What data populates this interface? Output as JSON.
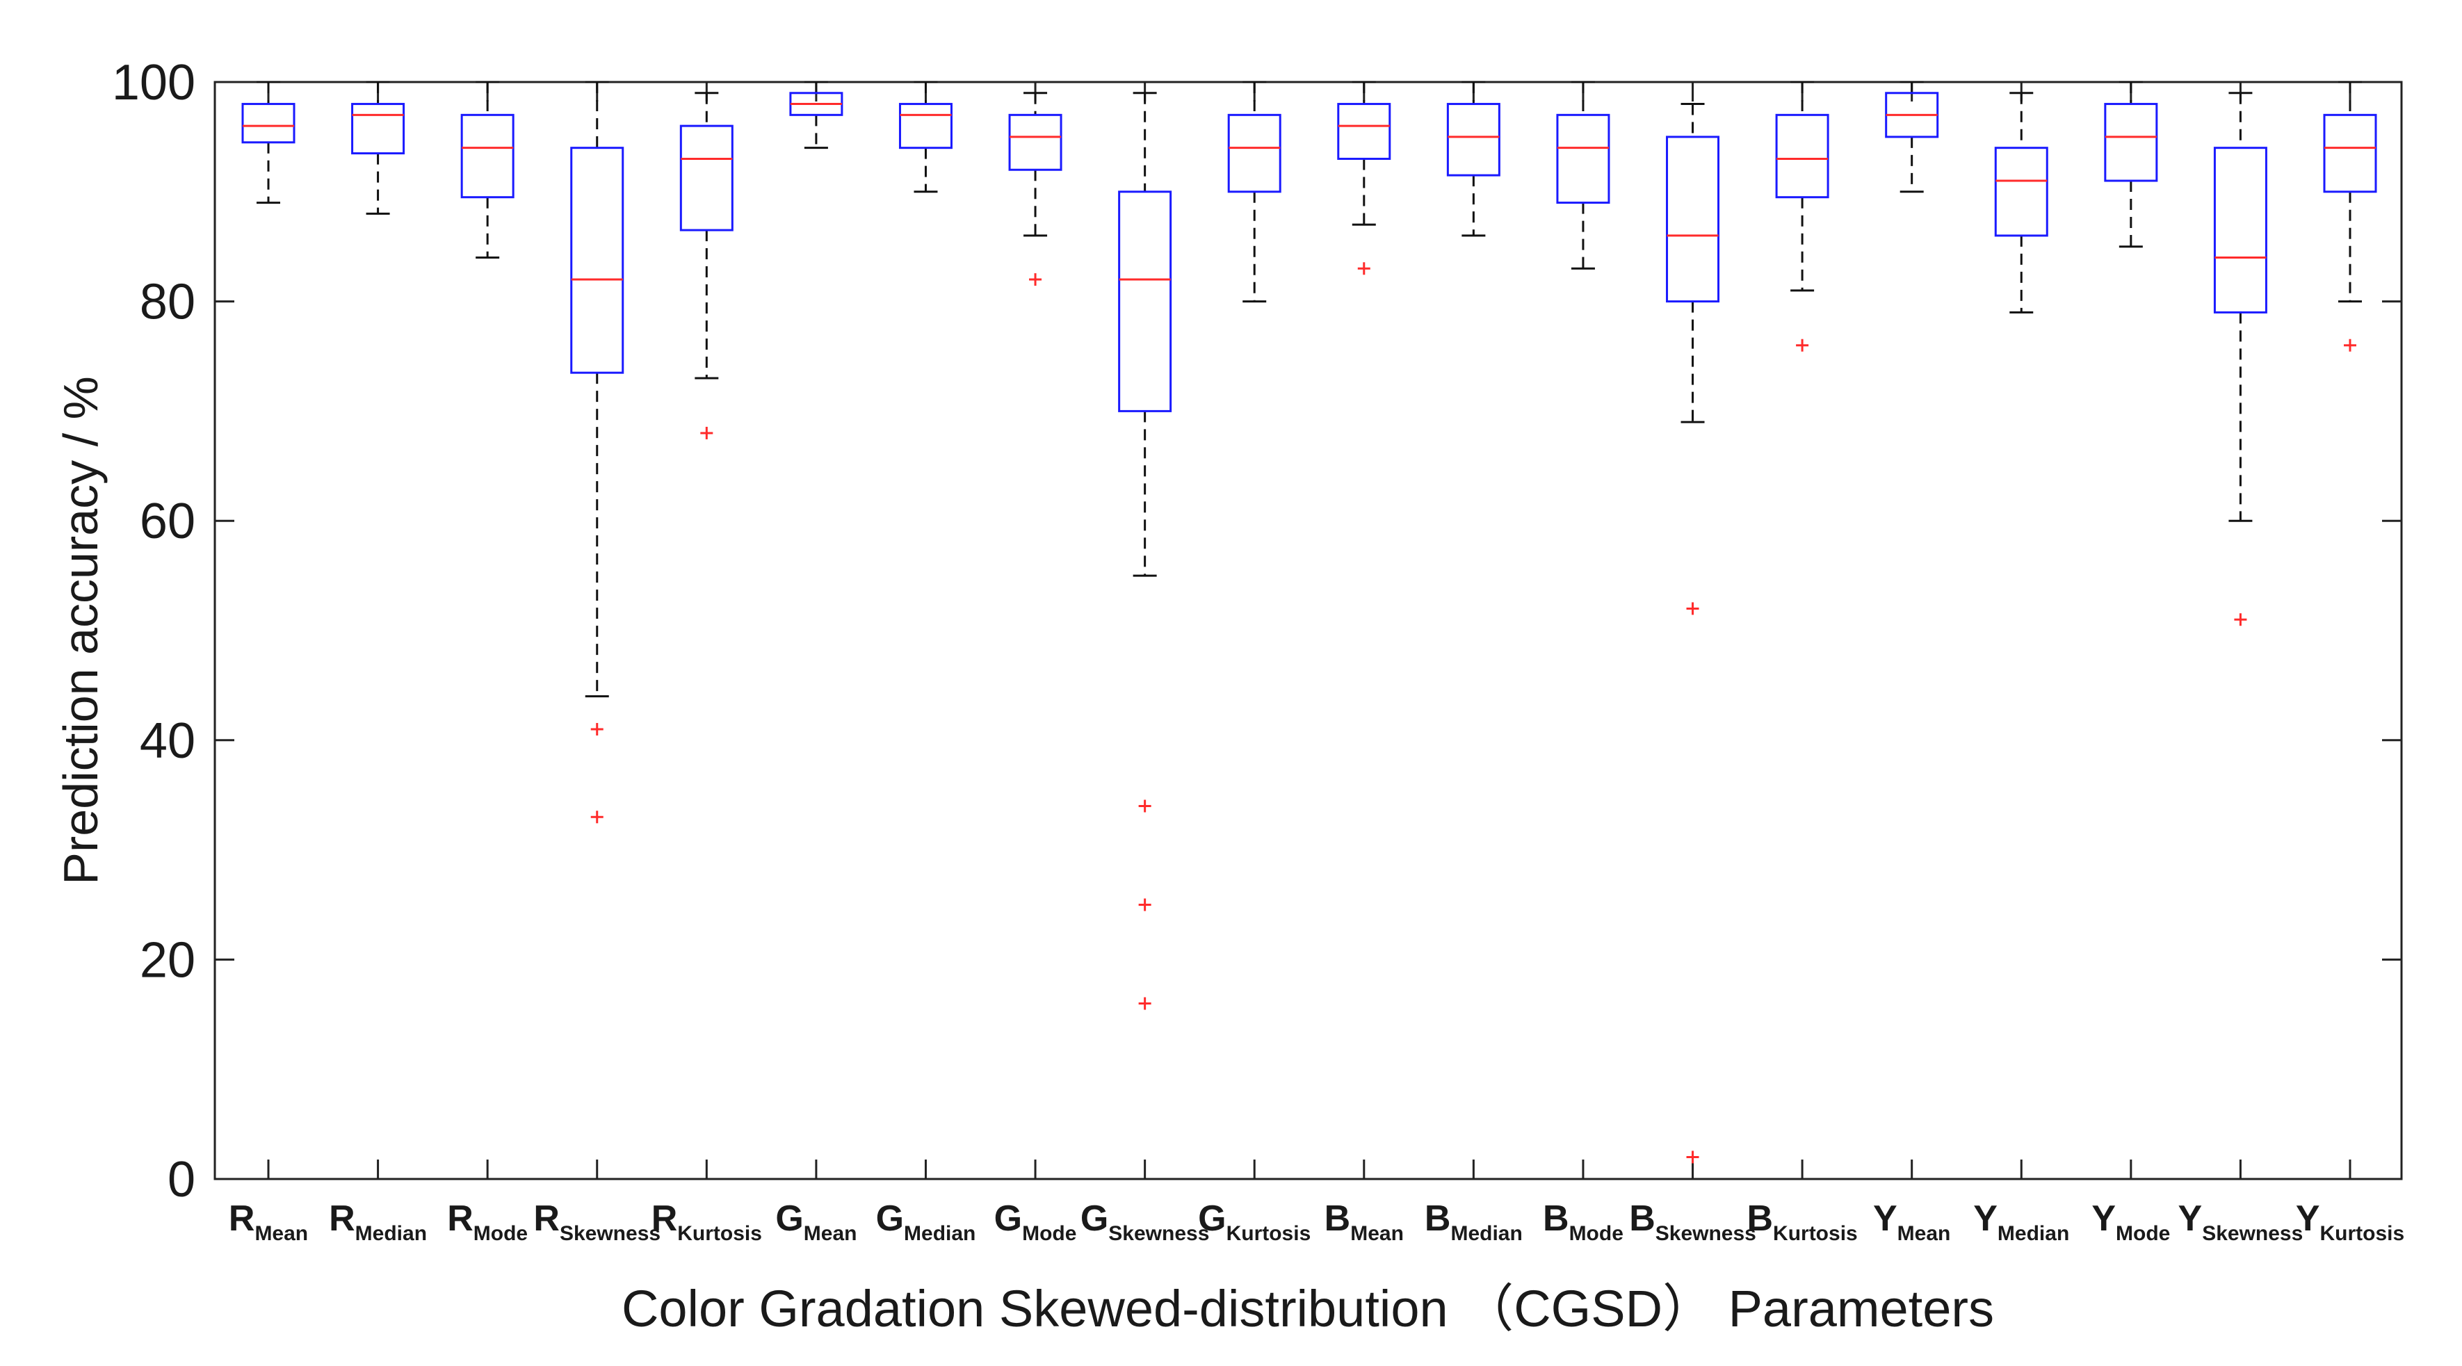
{
  "chart_data": {
    "type": "box",
    "title": "",
    "xlabel": "Color Gradation Skewed-distribution （CGSD） Parameters",
    "ylabel": "Prediction accuracy / %",
    "ylim": [
      0,
      100
    ],
    "yticks": [
      0,
      20,
      40,
      60,
      80,
      100
    ],
    "grid": false,
    "legend": "none",
    "colors": {
      "box": "#1a1aff",
      "median": "#ff2b2b",
      "whisker": "#111111",
      "outlier": "#ff2b2b",
      "axis": "#222222"
    },
    "categories": [
      {
        "base": "R",
        "sub": "Mean"
      },
      {
        "base": "R",
        "sub": "Median"
      },
      {
        "base": "R",
        "sub": "Mode"
      },
      {
        "base": "R",
        "sub": "Skewness"
      },
      {
        "base": "R",
        "sub": "Kurtosis"
      },
      {
        "base": "G",
        "sub": "Mean"
      },
      {
        "base": "G",
        "sub": "Median"
      },
      {
        "base": "G",
        "sub": "Mode"
      },
      {
        "base": "G",
        "sub": "Skewness"
      },
      {
        "base": "G",
        "sub": "Kurtosis"
      },
      {
        "base": "B",
        "sub": "Mean"
      },
      {
        "base": "B",
        "sub": "Median"
      },
      {
        "base": "B",
        "sub": "Mode"
      },
      {
        "base": "B",
        "sub": "Skewness"
      },
      {
        "base": "B",
        "sub": "Kurtosis"
      },
      {
        "base": "Y",
        "sub": "Mean"
      },
      {
        "base": "Y",
        "sub": "Median"
      },
      {
        "base": "Y",
        "sub": "Mode"
      },
      {
        "base": "Y",
        "sub": "Skewness"
      },
      {
        "base": "Y",
        "sub": "Kurtosis"
      }
    ],
    "boxes": [
      {
        "whisker_low": 89,
        "q1": 94.5,
        "median": 96,
        "q3": 98,
        "whisker_high": 100,
        "outliers": []
      },
      {
        "whisker_low": 88,
        "q1": 93.5,
        "median": 97,
        "q3": 98,
        "whisker_high": 100,
        "outliers": []
      },
      {
        "whisker_low": 84,
        "q1": 89.5,
        "median": 94,
        "q3": 97,
        "whisker_high": 100,
        "outliers": []
      },
      {
        "whisker_low": 44,
        "q1": 73.5,
        "median": 82,
        "q3": 94,
        "whisker_high": 100,
        "outliers": [
          41,
          33
        ]
      },
      {
        "whisker_low": 73,
        "q1": 86.5,
        "median": 93,
        "q3": 96,
        "whisker_high": 99,
        "outliers": [
          68
        ]
      },
      {
        "whisker_low": 94,
        "q1": 97,
        "median": 98,
        "q3": 99,
        "whisker_high": 100,
        "outliers": []
      },
      {
        "whisker_low": 90,
        "q1": 94,
        "median": 97,
        "q3": 98,
        "whisker_high": 100,
        "outliers": []
      },
      {
        "whisker_low": 86,
        "q1": 92,
        "median": 95,
        "q3": 97,
        "whisker_high": 99,
        "outliers": [
          82
        ]
      },
      {
        "whisker_low": 55,
        "q1": 70,
        "median": 82,
        "q3": 90,
        "whisker_high": 99,
        "outliers": [
          34,
          25,
          16
        ]
      },
      {
        "whisker_low": 80,
        "q1": 90,
        "median": 94,
        "q3": 97,
        "whisker_high": 100,
        "outliers": []
      },
      {
        "whisker_low": 87,
        "q1": 93,
        "median": 96,
        "q3": 98,
        "whisker_high": 100,
        "outliers": [
          83
        ]
      },
      {
        "whisker_low": 86,
        "q1": 91.5,
        "median": 95,
        "q3": 98,
        "whisker_high": 100,
        "outliers": []
      },
      {
        "whisker_low": 83,
        "q1": 89,
        "median": 94,
        "q3": 97,
        "whisker_high": 100,
        "outliers": []
      },
      {
        "whisker_low": 69,
        "q1": 80,
        "median": 86,
        "q3": 95,
        "whisker_high": 98,
        "outliers": [
          52,
          2
        ]
      },
      {
        "whisker_low": 81,
        "q1": 89.5,
        "median": 93,
        "q3": 97,
        "whisker_high": 100,
        "outliers": [
          76
        ]
      },
      {
        "whisker_low": 90,
        "q1": 95,
        "median": 97,
        "q3": 99,
        "whisker_high": 100,
        "outliers": []
      },
      {
        "whisker_low": 79,
        "q1": 86,
        "median": 91,
        "q3": 94,
        "whisker_high": 99,
        "outliers": []
      },
      {
        "whisker_low": 85,
        "q1": 91,
        "median": 95,
        "q3": 98,
        "whisker_high": 100,
        "outliers": []
      },
      {
        "whisker_low": 60,
        "q1": 79,
        "median": 84,
        "q3": 94,
        "whisker_high": 99,
        "outliers": [
          51
        ]
      },
      {
        "whisker_low": 80,
        "q1": 90,
        "median": 94,
        "q3": 97,
        "whisker_high": 100,
        "outliers": [
          76
        ]
      }
    ]
  }
}
